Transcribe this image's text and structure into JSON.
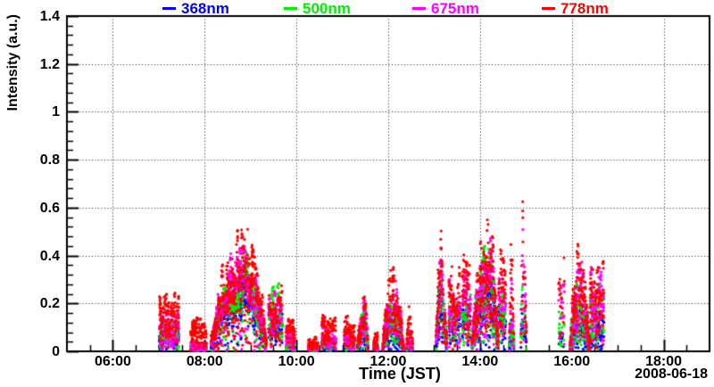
{
  "chart_data": {
    "type": "scatter",
    "title": "",
    "xlabel": "Time (JST)",
    "ylabel": "Intensity (a.u.)",
    "date_label": "2008-06-18",
    "legend_position": "top",
    "grid": "dotted",
    "x_axis": {
      "unit": "time (JST, hours)",
      "min_hour": 5.0,
      "max_hour": 19.0,
      "major_ticks": [
        {
          "hour": 6,
          "label": "06:00"
        },
        {
          "hour": 8,
          "label": "08:00"
        },
        {
          "hour": 10,
          "label": "10:00"
        },
        {
          "hour": 12,
          "label": "12:00"
        },
        {
          "hour": 14,
          "label": "14:00"
        },
        {
          "hour": 16,
          "label": "16:00"
        },
        {
          "hour": 18,
          "label": "18:00"
        }
      ],
      "minor_step_hours": 0.5
    },
    "y_axis": {
      "min": 0,
      "max": 1.4,
      "major_ticks": [
        {
          "value": 0,
          "label": "0"
        },
        {
          "value": 0.2,
          "label": "0.2"
        },
        {
          "value": 0.4,
          "label": "0.4"
        },
        {
          "value": 0.6,
          "label": "0.6"
        },
        {
          "value": 0.8,
          "label": "0.8"
        },
        {
          "value": 1,
          "label": "1"
        },
        {
          "value": 1.2,
          "label": "1.2"
        },
        {
          "value": 1.4,
          "label": "1.4"
        }
      ],
      "minor_step": 0.04
    },
    "series": [
      {
        "name": "368nm",
        "color": "#0000ff"
      },
      {
        "name": "500nm",
        "color": "#00ee00"
      },
      {
        "name": "675nm",
        "color": "#ff00ff"
      },
      {
        "name": "778nm",
        "color": "#ff0000"
      }
    ],
    "marker": {
      "shape": "filled-circle",
      "radius_px": 1.6
    },
    "seed": 20080618,
    "bursts": [
      {
        "t0": 7.01,
        "t1": 7.44,
        "peak": 0.2,
        "shape": "flat",
        "amps": [
          0.45,
          0.55,
          0.7,
          1
        ],
        "density": 5.5
      },
      {
        "t0": 7.69,
        "t1": 8.04,
        "peak": 0.11,
        "shape": "flat",
        "amps": [
          0.18,
          0.22,
          0.3,
          1
        ],
        "density": 6.0
      },
      {
        "t0": 8.14,
        "t1": 9.35,
        "peak": 0.46,
        "shape": "dome",
        "tp": 8.84,
        "amps": [
          0.62,
          0.72,
          0.88,
          1
        ],
        "bands": [
          [
            0.38,
            0.62
          ],
          [
            0.47,
            0.72
          ],
          [
            0.56,
            0.88
          ],
          [
            0.6,
            1.0
          ]
        ],
        "spray": 0.3,
        "density": 6.5
      },
      {
        "t0": 9.39,
        "t1": 9.7,
        "peak": 0.25,
        "shape": "flat",
        "amps": [
          0.75,
          0.95,
          0.85,
          1
        ],
        "density": 4.5
      },
      {
        "t0": 9.77,
        "t1": 9.97,
        "peak": 0.13,
        "shape": "flat",
        "amps": [
          0.3,
          0.4,
          0.7,
          1
        ],
        "density": 4.5
      },
      {
        "t0": 10.26,
        "t1": 10.47,
        "peak": 0.05,
        "shape": "flat",
        "amps": [
          0.25,
          0.3,
          0.4,
          1
        ],
        "density": 6.0
      },
      {
        "t0": 10.55,
        "t1": 10.86,
        "peak": 0.12,
        "shape": "flat",
        "amps": [
          0.3,
          0.45,
          0.7,
          1
        ],
        "density": 5.0
      },
      {
        "t0": 11.04,
        "t1": 11.27,
        "peak": 0.12,
        "shape": "flat",
        "amps": [
          0.35,
          0.45,
          0.6,
          1
        ],
        "density": 5.0
      },
      {
        "t0": 11.33,
        "t1": 11.56,
        "peak": 0.24,
        "shape": "spike",
        "tp": 11.49,
        "amps": [
          0.5,
          0.9,
          1.15,
          1
        ],
        "density": 5.0
      },
      {
        "t0": 11.68,
        "t1": 11.78,
        "peak": 0.08,
        "shape": "flat",
        "amps": [
          0.3,
          0.4,
          0.5,
          1
        ],
        "density": 5.2
      },
      {
        "t0": 11.88,
        "t1": 12.34,
        "peak": 0.3,
        "shape": "dome",
        "tp": 12.05,
        "amps": [
          0.5,
          0.73,
          0.93,
          1
        ],
        "density": 5.2
      },
      {
        "t0": 12.4,
        "t1": 12.54,
        "peak": 0.18,
        "shape": "spike",
        "tp": 12.45,
        "amps": [
          0.25,
          0.35,
          0.5,
          1
        ],
        "density": 5.0
      },
      {
        "t0": 13.04,
        "t1": 13.28,
        "peak": 0.47,
        "shape": "spike",
        "tp": 13.13,
        "amps": [
          0.55,
          0.68,
          0.85,
          1
        ],
        "density": 6.0
      },
      {
        "t0": 13.32,
        "t1": 13.57,
        "peak": 0.3,
        "shape": "flat",
        "amps": [
          0.5,
          0.65,
          0.8,
          1
        ],
        "density": 5.2
      },
      {
        "t0": 13.61,
        "t1": 13.8,
        "peak": 0.32,
        "shape": "flat",
        "amps": [
          0.5,
          0.65,
          0.85,
          1
        ],
        "density": 5.2
      },
      {
        "t0": 13.82,
        "t1": 14.4,
        "peak": 0.5,
        "shape": "dome",
        "tp": 14.15,
        "amps": [
          0.6,
          0.72,
          0.86,
          1
        ],
        "density": 6.5
      },
      {
        "t0": 14.4,
        "t1": 14.56,
        "peak": 0.35,
        "shape": "flat",
        "amps": [
          0.5,
          0.65,
          0.85,
          1
        ],
        "density": 5.2
      },
      {
        "t0": 14.64,
        "t1": 14.74,
        "peak": 0.42,
        "shape": "spike",
        "tp": 14.68,
        "amps": [
          0.35,
          0.5,
          0.8,
          1
        ],
        "density": 5.2
      },
      {
        "t0": 14.89,
        "t1": 15.01,
        "peak": 0.62,
        "shape": "spike",
        "tp": 14.93,
        "amps": [
          0.33,
          0.45,
          0.88,
          1
        ],
        "density": 3.5
      },
      {
        "t0": 15.71,
        "t1": 15.84,
        "peak": 0.36,
        "shape": "flat",
        "amps": [
          0.25,
          0.4,
          0.85,
          1
        ],
        "density": 2.5
      },
      {
        "t0": 15.96,
        "t1": 16.39,
        "peak": 0.4,
        "shape": "dome",
        "tp": 16.12,
        "amps": [
          0.42,
          0.62,
          0.88,
          1
        ],
        "density": 6.5
      },
      {
        "t0": 16.39,
        "t1": 16.7,
        "peak": 0.3,
        "shape": "flat",
        "amps": [
          0.45,
          0.75,
          0.95,
          1
        ],
        "density": 5.2
      }
    ]
  }
}
